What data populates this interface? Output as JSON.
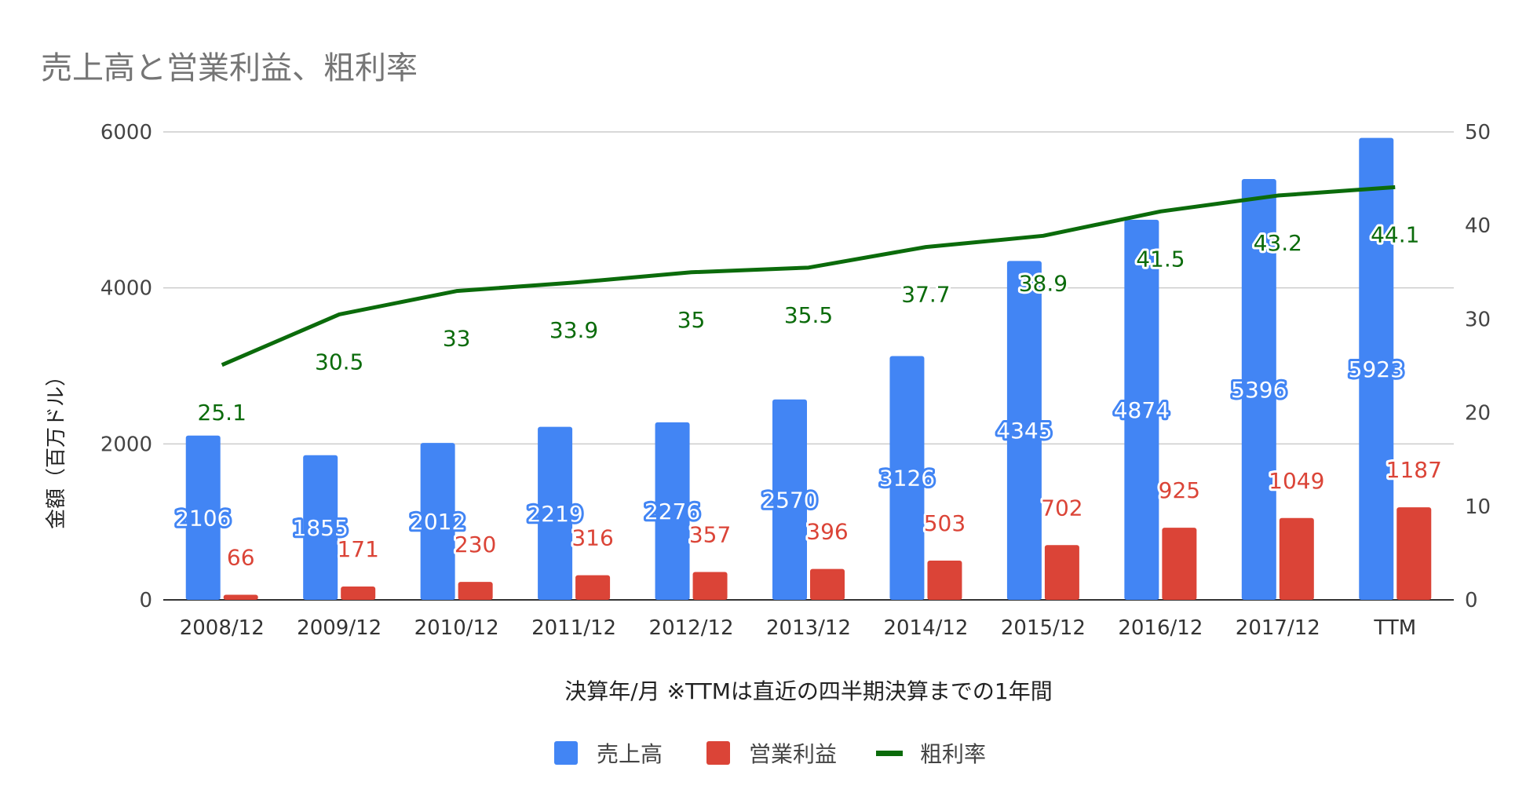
{
  "chart_data": {
    "type": "bar",
    "title": "売上高と営業利益、粗利率",
    "xlabel": "決算年/月 ※TTMは直近の四半期決算までの1年間",
    "ylabel": "金額（百万ドル）",
    "ylabel_right": "",
    "categories": [
      "2008/12",
      "2009/12",
      "2010/12",
      "2011/12",
      "2012/12",
      "2013/12",
      "2014/12",
      "2015/12",
      "2016/12",
      "2017/12",
      "TTM"
    ],
    "ylim": [
      0,
      6000
    ],
    "y_ticks": [
      "0",
      "2000",
      "4000",
      "6000"
    ],
    "ylim_right": [
      0,
      50
    ],
    "y_ticks_right": [
      "0",
      "10",
      "20",
      "30",
      "40",
      "50"
    ],
    "grid": true,
    "legend_position": "bottom",
    "series": [
      {
        "name": "売上高",
        "type": "bar",
        "axis": "left",
        "color": "#4285f4",
        "values": [
          2106,
          1855,
          2012,
          2219,
          2276,
          2570,
          3126,
          4345,
          4874,
          5396,
          5923
        ]
      },
      {
        "name": "営業利益",
        "type": "bar",
        "axis": "left",
        "color": "#db4437",
        "values": [
          66,
          171,
          230,
          316,
          357,
          396,
          503,
          702,
          925,
          1049,
          1187
        ]
      },
      {
        "name": "粗利率",
        "type": "line",
        "axis": "right",
        "color": "#0b6b0b",
        "values": [
          25.1,
          30.5,
          33,
          33.9,
          35,
          35.5,
          37.7,
          38.9,
          41.5,
          43.2,
          44.1
        ]
      }
    ]
  }
}
